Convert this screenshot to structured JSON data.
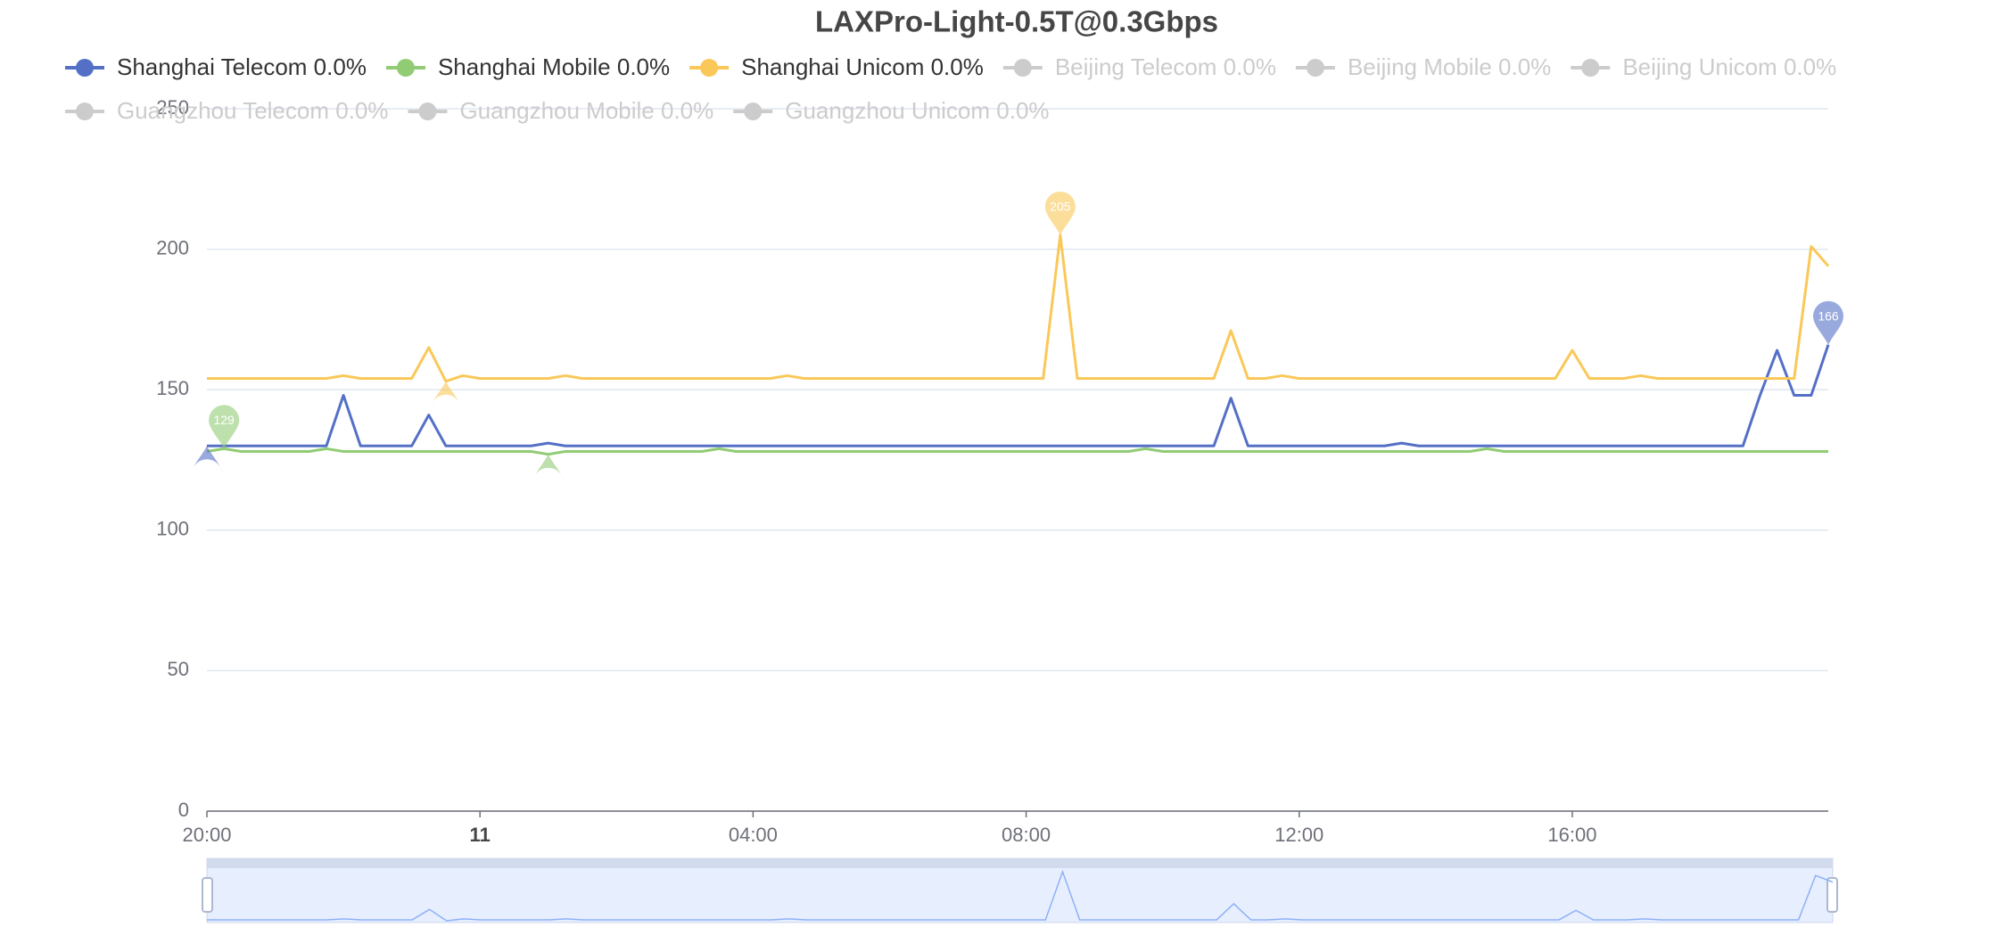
{
  "chart_data": {
    "type": "line",
    "title": "LAXPro-Light-0.5T@0.3Gbps",
    "x": [
      "20:00",
      "20:15",
      "20:30",
      "20:45",
      "21:00",
      "21:15",
      "21:30",
      "21:45",
      "22:00",
      "22:15",
      "22:30",
      "22:45",
      "23:00",
      "23:15",
      "23:30",
      "23:45",
      "00:00",
      "00:15",
      "00:30",
      "00:45",
      "01:00",
      "01:15",
      "01:30",
      "01:45",
      "02:00",
      "02:15",
      "02:30",
      "02:45",
      "03:00",
      "03:15",
      "03:30",
      "03:45",
      "04:00",
      "04:15",
      "04:30",
      "04:45",
      "05:00",
      "05:15",
      "05:30",
      "05:45",
      "06:00",
      "06:15",
      "06:30",
      "06:45",
      "07:00",
      "07:15",
      "07:30",
      "07:45",
      "08:00",
      "08:15",
      "08:30",
      "08:45",
      "09:00",
      "09:15",
      "09:30",
      "09:45",
      "10:00",
      "10:15",
      "10:30",
      "10:45",
      "11:00",
      "11:15",
      "11:30",
      "11:45",
      "12:00",
      "12:15",
      "12:30",
      "12:45",
      "13:00",
      "13:15",
      "13:30",
      "13:45",
      "14:00",
      "14:15",
      "14:30",
      "14:45",
      "15:00",
      "15:15",
      "15:30",
      "15:45",
      "16:00",
      "16:15",
      "16:30",
      "16:45",
      "17:00",
      "17:15",
      "17:30",
      "17:45",
      "18:00",
      "18:15",
      "18:30",
      "18:45",
      "19:00",
      "19:15",
      "19:30",
      "19:45"
    ],
    "xlim": [
      "20:00",
      "19:45"
    ],
    "xticks": [
      "20:00",
      {
        "value": "00:00",
        "label": "11"
      },
      "04:00",
      "08:00",
      "12:00",
      "16:00"
    ],
    "ylim": [
      0,
      250
    ],
    "yticks": [
      0,
      50,
      100,
      150,
      200,
      250
    ],
    "grid": true,
    "markers": [
      "max",
      "min"
    ],
    "series": [
      {
        "name": "Shanghai Telecom 0.0%",
        "color": "#5470c6",
        "selected": true,
        "values": [
          130,
          130,
          130,
          130,
          130,
          130,
          130,
          130,
          148,
          130,
          130,
          130,
          130,
          141,
          130,
          130,
          130,
          130,
          130,
          130,
          131,
          130,
          130,
          130,
          130,
          130,
          130,
          130,
          130,
          130,
          130,
          130,
          130,
          130,
          130,
          130,
          130,
          130,
          130,
          130,
          130,
          130,
          130,
          130,
          130,
          130,
          130,
          130,
          130,
          130,
          130,
          130,
          130,
          130,
          130,
          130,
          130,
          130,
          130,
          130,
          147,
          130,
          130,
          130,
          130,
          130,
          130,
          130,
          130,
          130,
          131,
          130,
          130,
          130,
          130,
          130,
          130,
          130,
          130,
          130,
          130,
          130,
          130,
          130,
          130,
          130,
          130,
          130,
          130,
          130,
          130,
          148,
          164,
          148,
          148,
          166
        ]
      },
      {
        "name": "Shanghai Mobile 0.0%",
        "color": "#91cc75",
        "selected": true,
        "values": [
          128,
          129,
          128,
          128,
          128,
          128,
          128,
          129,
          128,
          128,
          128,
          128,
          128,
          128,
          128,
          128,
          128,
          128,
          128,
          128,
          127,
          128,
          128,
          128,
          128,
          128,
          128,
          128,
          128,
          128,
          129,
          128,
          128,
          128,
          128,
          128,
          128,
          128,
          128,
          128,
          128,
          128,
          128,
          128,
          128,
          128,
          128,
          128,
          128,
          128,
          128,
          128,
          128,
          128,
          128,
          129,
          128,
          128,
          128,
          128,
          128,
          128,
          128,
          128,
          128,
          128,
          128,
          128,
          128,
          128,
          128,
          128,
          128,
          128,
          128,
          129,
          128,
          128,
          128,
          128,
          128,
          128,
          128,
          128,
          128,
          128,
          128,
          128,
          128,
          128,
          128,
          128,
          128,
          128,
          128,
          128
        ]
      },
      {
        "name": "Shanghai Unicom 0.0%",
        "color": "#fac858",
        "selected": true,
        "values": [
          154,
          154,
          154,
          154,
          154,
          154,
          154,
          154,
          155,
          154,
          154,
          154,
          154,
          165,
          153,
          155,
          154,
          154,
          154,
          154,
          154,
          155,
          154,
          154,
          154,
          154,
          154,
          154,
          154,
          154,
          154,
          154,
          154,
          154,
          155,
          154,
          154,
          154,
          154,
          154,
          154,
          154,
          154,
          154,
          154,
          154,
          154,
          154,
          154,
          154,
          205,
          154,
          154,
          154,
          154,
          154,
          154,
          154,
          154,
          154,
          171,
          154,
          154,
          155,
          154,
          154,
          154,
          154,
          154,
          154,
          154,
          154,
          154,
          154,
          154,
          154,
          154,
          154,
          154,
          154,
          164,
          154,
          154,
          154,
          155,
          154,
          154,
          154,
          154,
          154,
          154,
          154,
          154,
          154,
          201,
          194
        ]
      },
      {
        "name": "Beijing Telecom 0.0%",
        "selected": false
      },
      {
        "name": "Beijing Mobile 0.0%",
        "selected": false
      },
      {
        "name": "Beijing Unicom 0.0%",
        "selected": false
      },
      {
        "name": "Guangzhou Telecom 0.0%",
        "selected": false
      },
      {
        "name": "Guangzhou Mobile 0.0%",
        "selected": false
      },
      {
        "name": "Guangzhou Unicom 0.0%",
        "selected": false
      }
    ]
  }
}
